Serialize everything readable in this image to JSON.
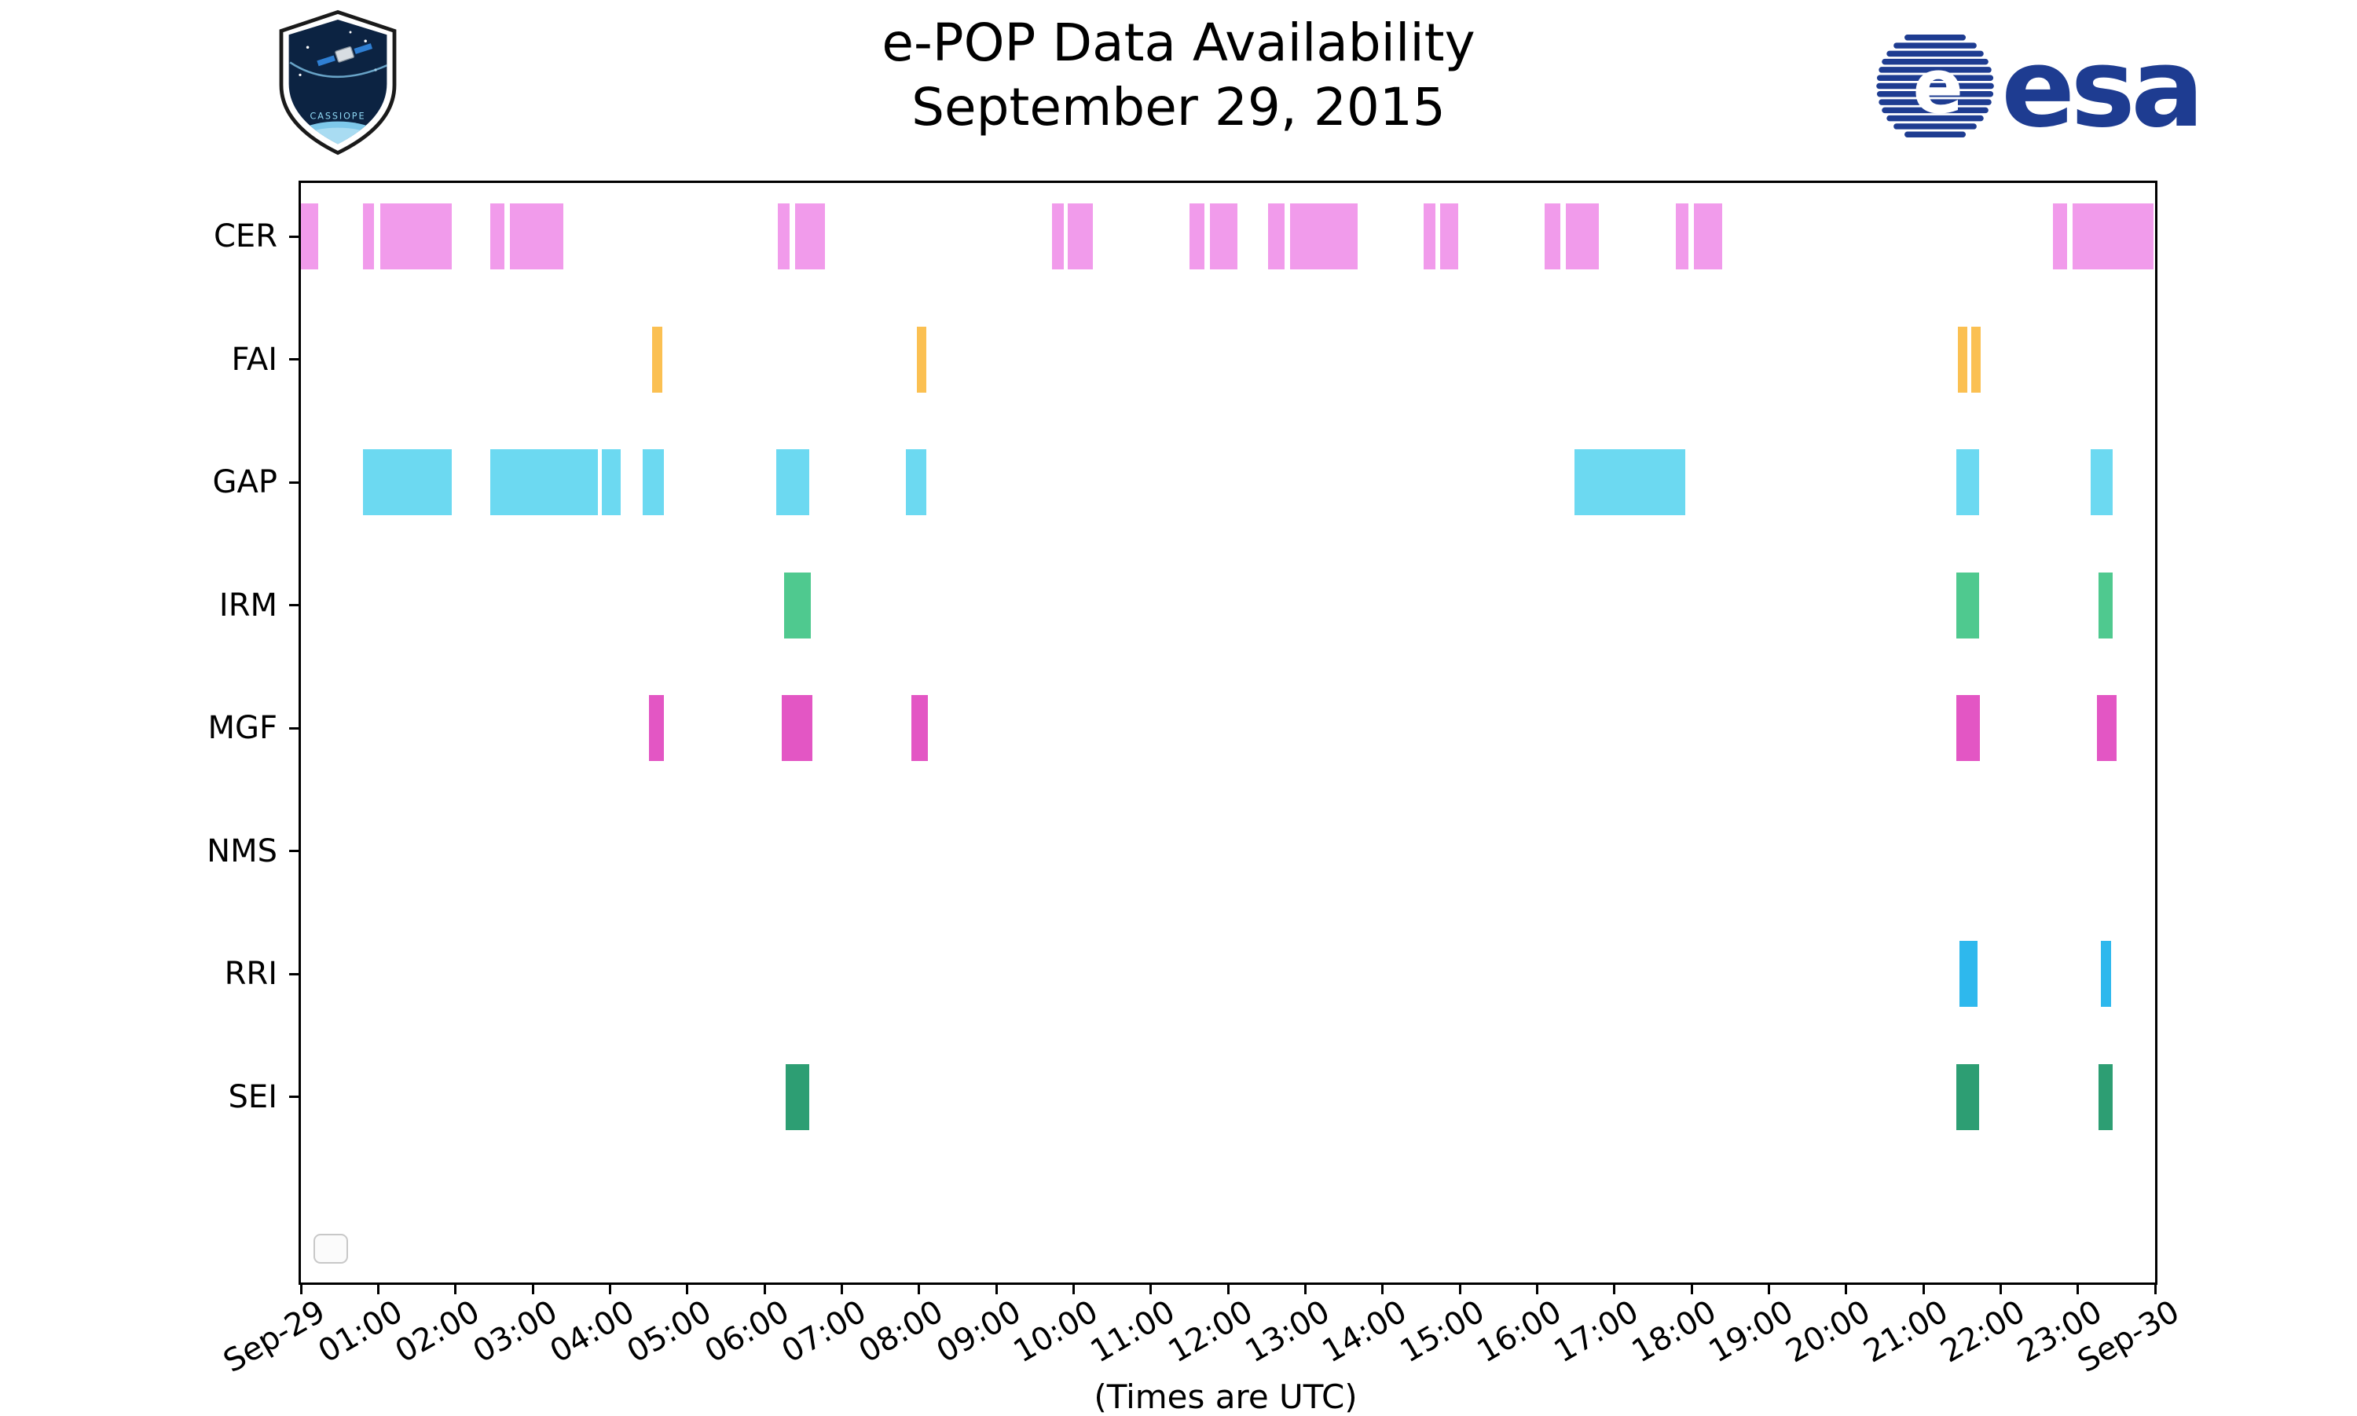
{
  "header": {
    "title": "e-POP Data Availability",
    "subtitle": "September 29, 2015",
    "esa_wordmark": "esa",
    "esa_globe_letter": "e",
    "cassiope_patch_label": "CASSIOPE"
  },
  "footer": {
    "caption": "(Times are UTC)"
  },
  "chart_data": {
    "type": "timeline",
    "title": "e-POP Data Availability",
    "subtitle": "September 29, 2015",
    "xlabel": "(Times are UTC)",
    "grid": false,
    "axis_color": "#000000",
    "legend": {
      "visible": true,
      "position": "lower left",
      "items": []
    },
    "x_range_hours": [
      0,
      24
    ],
    "x_tick_labels": [
      "Sep-29",
      "01:00",
      "02:00",
      "03:00",
      "04:00",
      "05:00",
      "06:00",
      "07:00",
      "08:00",
      "09:00",
      "10:00",
      "11:00",
      "12:00",
      "13:00",
      "14:00",
      "15:00",
      "16:00",
      "17:00",
      "18:00",
      "19:00",
      "20:00",
      "21:00",
      "22:00",
      "23:00",
      "Sep-30"
    ],
    "rows": [
      {
        "name": "CER",
        "color": "#F19BEB",
        "intervals": [
          [
            0.0,
            0.22
          ],
          [
            0.8,
            0.95
          ],
          [
            1.03,
            1.95
          ],
          [
            2.45,
            2.63
          ],
          [
            2.7,
            3.4
          ],
          [
            6.17,
            6.33
          ],
          [
            6.4,
            6.78
          ],
          [
            9.72,
            9.87
          ],
          [
            9.93,
            10.25
          ],
          [
            11.5,
            11.7
          ],
          [
            11.77,
            12.12
          ],
          [
            12.52,
            12.73
          ],
          [
            12.8,
            13.68
          ],
          [
            14.53,
            14.68
          ],
          [
            14.75,
            14.98
          ],
          [
            16.1,
            16.3
          ],
          [
            16.37,
            16.8
          ],
          [
            17.8,
            17.96
          ],
          [
            18.03,
            18.4
          ],
          [
            22.68,
            22.86
          ],
          [
            22.93,
            23.98
          ]
        ]
      },
      {
        "name": "FAI",
        "color": "#FBC052",
        "intervals": [
          [
            4.55,
            4.68
          ],
          [
            7.97,
            8.1
          ],
          [
            21.45,
            21.57
          ],
          [
            21.62,
            21.74
          ]
        ]
      },
      {
        "name": "GAP",
        "color": "#6CD9F1",
        "intervals": [
          [
            0.8,
            1.95
          ],
          [
            2.45,
            3.84
          ],
          [
            3.89,
            4.14
          ],
          [
            4.42,
            4.7
          ],
          [
            6.15,
            6.58
          ],
          [
            7.83,
            8.1
          ],
          [
            16.48,
            17.92
          ],
          [
            21.43,
            21.72
          ],
          [
            23.17,
            23.45
          ]
        ]
      },
      {
        "name": "IRM",
        "color": "#4FC98F",
        "intervals": [
          [
            6.25,
            6.6
          ],
          [
            21.43,
            21.72
          ],
          [
            23.27,
            23.45
          ]
        ]
      },
      {
        "name": "MGF",
        "color": "#E356C4",
        "intervals": [
          [
            4.5,
            4.7
          ],
          [
            6.22,
            6.62
          ],
          [
            7.9,
            8.12
          ],
          [
            21.43,
            21.73
          ],
          [
            23.25,
            23.5
          ]
        ]
      },
      {
        "name": "NMS",
        "color": "#9E9E9E",
        "intervals": []
      },
      {
        "name": "RRI",
        "color": "#2EB8ED",
        "intervals": [
          [
            21.47,
            21.7
          ],
          [
            23.3,
            23.43
          ]
        ]
      },
      {
        "name": "SEI",
        "color": "#2D9E73",
        "intervals": [
          [
            6.27,
            6.58
          ],
          [
            21.43,
            21.72
          ],
          [
            23.27,
            23.45
          ]
        ]
      }
    ]
  }
}
